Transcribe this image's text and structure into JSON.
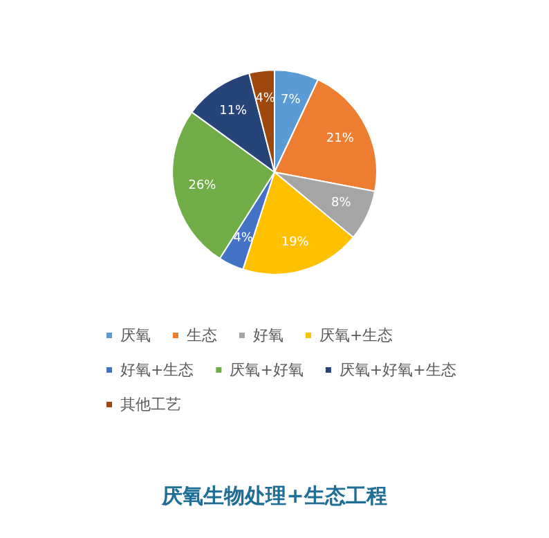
{
  "chart_data": {
    "type": "pie",
    "title": "厌氧生物处理+生态工程",
    "categories": [
      "厌氧",
      "生态",
      "好氧",
      "厌氧+生态",
      "好氧+生态",
      "厌氧+好氧",
      "厌氧+好氧+生态",
      "其他工艺"
    ],
    "values": [
      7,
      21,
      8,
      19,
      4,
      26,
      11,
      4
    ],
    "colors": [
      "#5b9bd5",
      "#ed7d31",
      "#a5a5a5",
      "#ffc000",
      "#4472c4",
      "#70ad47",
      "#264478",
      "#9e480e"
    ],
    "value_labels": [
      "7%",
      "21%",
      "8%",
      "19%",
      "4%",
      "26%",
      "11%",
      "4%"
    ],
    "legend": "bottom"
  }
}
